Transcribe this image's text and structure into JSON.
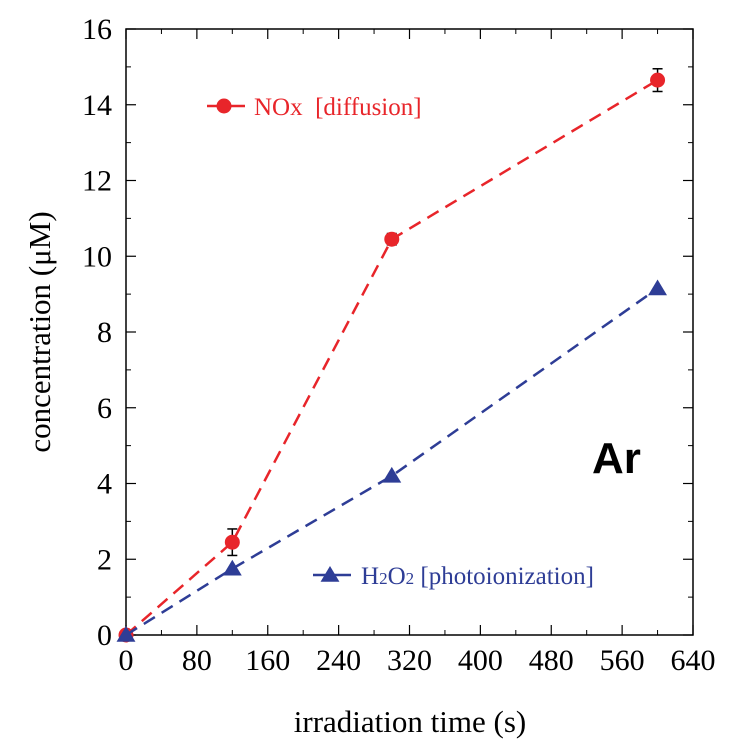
{
  "chart_data": {
    "type": "line",
    "xlabel": "irradiation time (s)",
    "ylabel": "concentration (μM)",
    "xlim": [
      0,
      640
    ],
    "ylim": [
      0,
      16
    ],
    "xticks": [
      0,
      80,
      160,
      240,
      320,
      400,
      480,
      560,
      640
    ],
    "yticks": [
      0,
      2,
      4,
      6,
      8,
      10,
      12,
      14,
      16
    ],
    "grid": false,
    "annotation": "Ar",
    "series": [
      {
        "name": "NOx  [diffusion]",
        "color": "#e8252a",
        "marker": "circle",
        "line": "dashed",
        "x": [
          0,
          120,
          300,
          600
        ],
        "y": [
          0,
          2.45,
          10.45,
          14.65
        ],
        "error": [
          0,
          0.35,
          0.15,
          0.3
        ]
      },
      {
        "name_parts": [
          "H",
          "2",
          "O",
          "2",
          " [photoionization]"
        ],
        "color": "#2e3d96",
        "marker": "triangle",
        "line": "dashed",
        "x": [
          0,
          120,
          300,
          600
        ],
        "y": [
          0,
          1.75,
          4.2,
          9.15
        ],
        "error": [
          0,
          0,
          0,
          0
        ]
      }
    ]
  }
}
